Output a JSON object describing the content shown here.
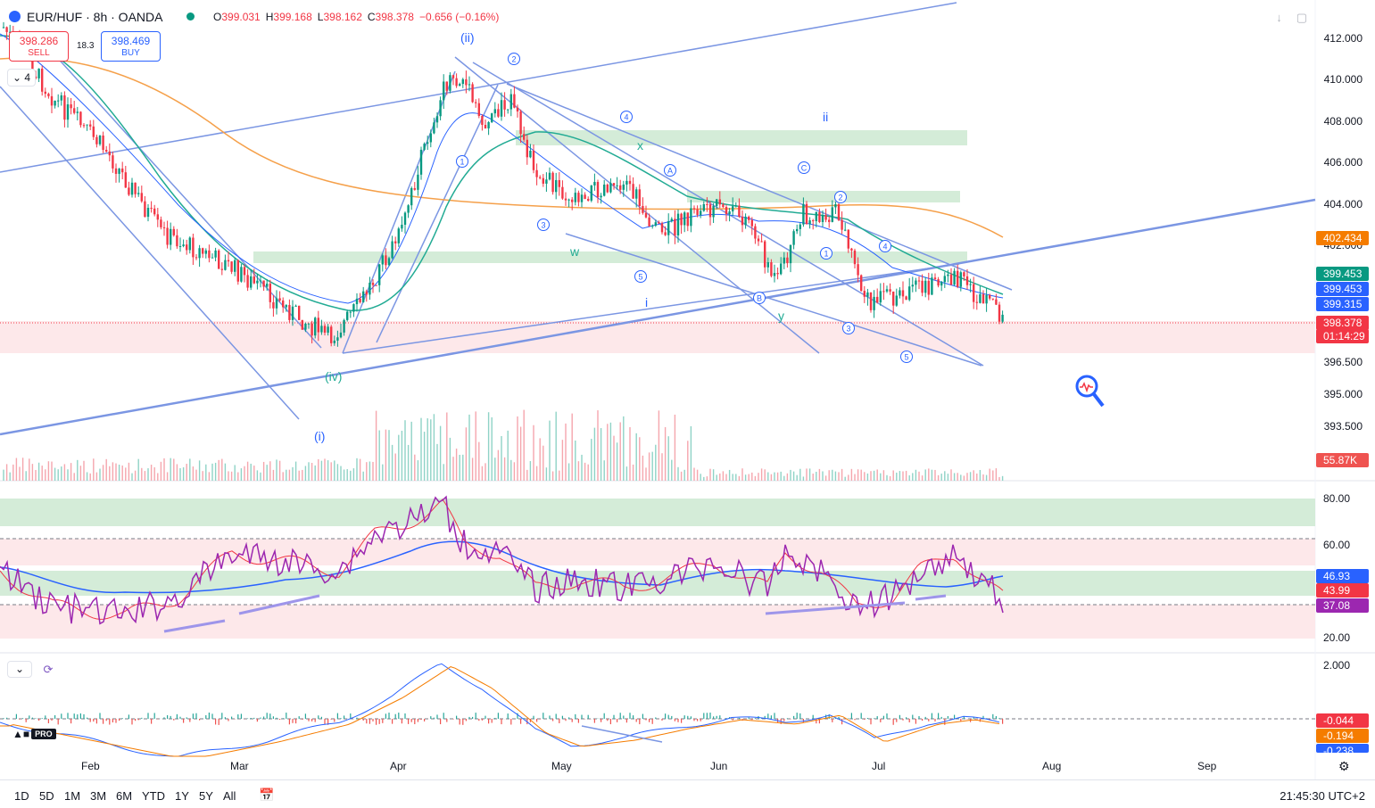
{
  "header": {
    "symbol_title": "EUR/HUF · 8h · OANDA",
    "ohlc": {
      "o_label": "O",
      "o": "399.031",
      "h_label": "H",
      "h": "399.168",
      "l_label": "L",
      "l": "398.162",
      "c_label": "C",
      "c": "398.378",
      "change": "−0.656 (−0.16%)"
    }
  },
  "trade": {
    "sell_price": "398.286",
    "sell_label": "SELL",
    "buy_price": "398.469",
    "buy_label": "BUY",
    "spread": "18.3"
  },
  "collapse_count": "4",
  "price_axis": {
    "labels": [
      "412.000",
      "410.000",
      "408.000",
      "406.000",
      "404.000",
      "402.000",
      "396.500",
      "395.000",
      "393.500"
    ],
    "tags": [
      {
        "text": "402.434",
        "color": "#f57c00"
      },
      {
        "text": "399.453",
        "color": "#089981"
      },
      {
        "text": "399.453",
        "color": "#2962ff"
      },
      {
        "text": "399.315",
        "color": "#2962ff"
      },
      {
        "text": "398.378",
        "color": "#f23645"
      },
      {
        "text": "01:14:29",
        "color": "#f23645"
      },
      {
        "text": "55.87K",
        "color": "#ef5350"
      }
    ]
  },
  "rsi_axis": {
    "labels": [
      "80.00",
      "60.00",
      "20.00"
    ],
    "tags": [
      {
        "text": "46.93",
        "color": "#2962ff"
      },
      {
        "text": "43.99",
        "color": "#f23645"
      },
      {
        "text": "37.08",
        "color": "#9c27b0"
      }
    ]
  },
  "macd_axis": {
    "labels": [
      "2.000"
    ],
    "tags": [
      {
        "text": "-0.044",
        "color": "#f23645"
      },
      {
        "text": "-0.194",
        "color": "#f57c00"
      },
      {
        "text": "-0.238",
        "color": "#2962ff"
      }
    ]
  },
  "time_axis": [
    "Feb",
    "Mar",
    "Apr",
    "May",
    "Jun",
    "Jul",
    "Aug",
    "Sep"
  ],
  "wave_labels": {
    "ii_paren": "(ii)",
    "iv_paren": "(iv)",
    "i_paren": "(i)",
    "ii": "ii",
    "i": "i",
    "x": "x",
    "w": "w",
    "y": "y"
  },
  "circled_labels": [
    "2",
    "4",
    "1",
    "3",
    "5",
    "A",
    "C",
    "2",
    "B",
    "1",
    "4",
    "3",
    "5"
  ],
  "ranges": [
    "1D",
    "5D",
    "1M",
    "3M",
    "6M",
    "YTD",
    "1Y",
    "5Y",
    "All"
  ],
  "clock": "21:45:30 UTC+2",
  "logo": {
    "pro": "PRO"
  },
  "colors": {
    "up": "#089981",
    "down": "#f23645",
    "ma_orange": "#f5a04a",
    "ma_blue": "#2962ff",
    "ma_green": "#22ab94",
    "trendline": "#7b96e3",
    "rsi": "#9c27b0"
  },
  "icons": [
    "symbol-icon",
    "status-dot-icon",
    "download-icon",
    "fullscreen-icon",
    "chevron-down-icon",
    "refresh-icon",
    "calendar-goto-icon",
    "settings-gear-icon",
    "magnifier-icon"
  ]
}
